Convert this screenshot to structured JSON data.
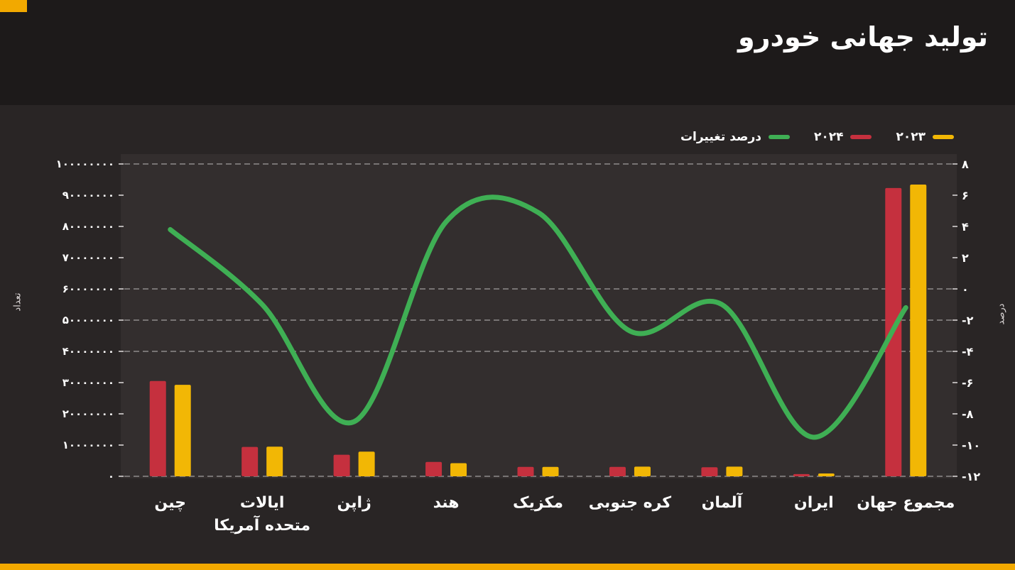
{
  "header": {
    "title": "تولید جهانی خودرو"
  },
  "legend": {
    "items": [
      {
        "id": "production-2023",
        "label": "۲۰۲۳",
        "color": "#F2B705"
      },
      {
        "id": "production-2024",
        "label": "۲۰۲۴",
        "color": "#C5303E"
      },
      {
        "id": "percent-change",
        "label": "درصد تغییرات",
        "color": "#3FAF54"
      }
    ]
  },
  "theme": {
    "accent": "#F2A900",
    "page-bg": "#292525",
    "header-bg": "#1D1A1A",
    "plot-bg": "#332E2E",
    "text": "#FFFFFF"
  },
  "chart_data": {
    "type": "bar",
    "title": "تولید جهانی خودرو",
    "grid": "dashed horizontal",
    "legend_position": "top-right",
    "categories": [
      "چین",
      "ایالات متحده آمریکا",
      "ژاپن",
      "هند",
      "مکزیک",
      "کره جنوبی",
      "آلمان",
      "ایران",
      "مجموع جهان"
    ],
    "series": [
      {
        "id": "production-2024",
        "name": "۲۰۲۴",
        "type": "bar",
        "axis": "left",
        "color": "#C5303E",
        "values": [
          30500000,
          9400000,
          6900000,
          4600000,
          3000000,
          3000000,
          2900000,
          700000,
          92300000
        ]
      },
      {
        "id": "production-2023",
        "name": "۲۰۲۳",
        "type": "bar",
        "axis": "left",
        "color": "#F2B705",
        "values": [
          29300000,
          9500000,
          7900000,
          4200000,
          3000000,
          3100000,
          3100000,
          900000,
          93400000
        ]
      },
      {
        "id": "percent-change",
        "name": "درصد تغییرات",
        "type": "line",
        "axis": "right",
        "color": "#3FAF54",
        "values": [
          3.8,
          -1.0,
          -8.5,
          4.3,
          4.9,
          -2.7,
          -1.0,
          -9.5,
          -1.2
        ]
      }
    ],
    "left_axis": {
      "title": "تعداد",
      "min": 0,
      "max": 100000000,
      "tick_step": 10000000,
      "tick_labels": [
        "۱۰۰۰۰۰۰۰۰",
        "۹۰۰۰۰۰۰۰",
        "۸۰۰۰۰۰۰۰",
        "۷۰۰۰۰۰۰۰",
        "۶۰۰۰۰۰۰۰",
        "۵۰۰۰۰۰۰۰",
        "۴۰۰۰۰۰۰۰",
        "۳۰۰۰۰۰۰۰",
        "۲۰۰۰۰۰۰۰",
        "۱۰۰۰۰۰۰۰",
        "۰"
      ]
    },
    "right_axis": {
      "title": "درصد",
      "min": -12,
      "max": 8,
      "tick_step": 2,
      "tick_labels": [
        "۸",
        "۶",
        "۴",
        "۲",
        "۰",
        "-۲",
        "-۴",
        "-۶",
        "-۸",
        "-۱۰",
        "-۱۲"
      ]
    },
    "gridlines_right_values": [
      8,
      0,
      -2,
      -4,
      -12
    ]
  }
}
